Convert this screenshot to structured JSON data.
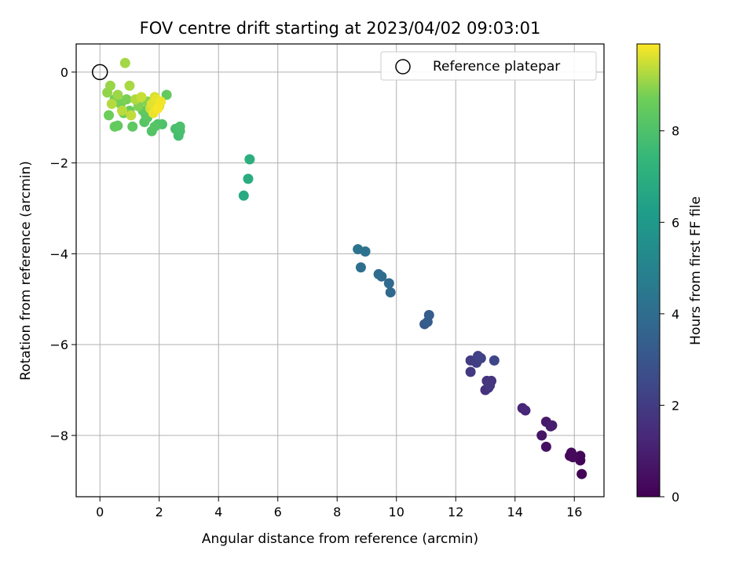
{
  "chart_data": {
    "type": "scatter",
    "title": "FOV centre drift starting at 2023/04/02 09:03:01",
    "xlabel": "Angular distance from reference (arcmin)",
    "ylabel": "Rotation from reference (arcmin)",
    "xlim": [
      -0.8,
      17.0
    ],
    "ylim": [
      -9.35,
      0.62
    ],
    "xticks": [
      0,
      2,
      4,
      6,
      8,
      10,
      12,
      14,
      16
    ],
    "yticks": [
      0,
      -2,
      -4,
      -6,
      -8
    ],
    "grid": true,
    "legend": {
      "label": "Reference platepar",
      "position": "top-right"
    },
    "reference_point": {
      "x": 0,
      "y": 0
    },
    "colorbar": {
      "label": "Hours from first FF file",
      "min": 0,
      "max": 9.9,
      "ticks": [
        0,
        2,
        4,
        6,
        8
      ],
      "colormap": "viridis"
    },
    "points": [
      {
        "x": 16.25,
        "y": -8.85,
        "h": 0.05
      },
      {
        "x": 16.2,
        "y": -8.55,
        "h": 0.1
      },
      {
        "x": 16.15,
        "y": -8.5,
        "h": 0.12
      },
      {
        "x": 16.2,
        "y": -8.45,
        "h": 0.15
      },
      {
        "x": 15.85,
        "y": -8.45,
        "h": 0.2
      },
      {
        "x": 15.9,
        "y": -8.38,
        "h": 0.25
      },
      {
        "x": 15.95,
        "y": -8.48,
        "h": 0.3
      },
      {
        "x": 15.05,
        "y": -8.25,
        "h": 0.5
      },
      {
        "x": 14.9,
        "y": -8.0,
        "h": 0.65
      },
      {
        "x": 15.05,
        "y": -7.7,
        "h": 0.8
      },
      {
        "x": 15.2,
        "y": -7.8,
        "h": 0.9
      },
      {
        "x": 15.25,
        "y": -7.78,
        "h": 0.95
      },
      {
        "x": 14.25,
        "y": -7.4,
        "h": 1.2
      },
      {
        "x": 14.35,
        "y": -7.45,
        "h": 1.3
      },
      {
        "x": 13.0,
        "y": -7.0,
        "h": 1.6
      },
      {
        "x": 13.1,
        "y": -6.95,
        "h": 1.65
      },
      {
        "x": 13.05,
        "y": -6.8,
        "h": 1.7
      },
      {
        "x": 13.2,
        "y": -6.8,
        "h": 1.75
      },
      {
        "x": 13.15,
        "y": -6.9,
        "h": 1.8
      },
      {
        "x": 12.5,
        "y": -6.6,
        "h": 1.9
      },
      {
        "x": 12.5,
        "y": -6.35,
        "h": 2.0
      },
      {
        "x": 12.7,
        "y": -6.4,
        "h": 2.1
      },
      {
        "x": 12.75,
        "y": -6.25,
        "h": 2.15
      },
      {
        "x": 12.85,
        "y": -6.3,
        "h": 2.2
      },
      {
        "x": 12.8,
        "y": -6.28,
        "h": 2.25
      },
      {
        "x": 13.3,
        "y": -6.35,
        "h": 2.35
      },
      {
        "x": 10.95,
        "y": -5.55,
        "h": 3.2
      },
      {
        "x": 11.05,
        "y": -5.5,
        "h": 3.25
      },
      {
        "x": 11.1,
        "y": -5.35,
        "h": 3.3
      },
      {
        "x": 9.8,
        "y": -4.85,
        "h": 3.8
      },
      {
        "x": 9.75,
        "y": -4.65,
        "h": 3.85
      },
      {
        "x": 9.5,
        "y": -4.5,
        "h": 3.9
      },
      {
        "x": 9.4,
        "y": -4.45,
        "h": 3.95
      },
      {
        "x": 8.8,
        "y": -4.3,
        "h": 4.1
      },
      {
        "x": 8.95,
        "y": -3.95,
        "h": 4.2
      },
      {
        "x": 8.7,
        "y": -3.9,
        "h": 4.25
      },
      {
        "x": 4.85,
        "y": -2.72,
        "h": 6.8
      },
      {
        "x": 5.0,
        "y": -2.35,
        "h": 6.9
      },
      {
        "x": 5.05,
        "y": -1.92,
        "h": 7.0
      },
      {
        "x": 2.65,
        "y": -1.4,
        "h": 7.8
      },
      {
        "x": 2.7,
        "y": -1.3,
        "h": 7.85
      },
      {
        "x": 2.55,
        "y": -1.25,
        "h": 7.9
      },
      {
        "x": 2.7,
        "y": -1.2,
        "h": 7.95
      },
      {
        "x": 2.1,
        "y": -1.15,
        "h": 8.0
      },
      {
        "x": 1.95,
        "y": -1.15,
        "h": 8.05
      },
      {
        "x": 1.75,
        "y": -1.3,
        "h": 8.1
      },
      {
        "x": 1.85,
        "y": -1.2,
        "h": 8.15
      },
      {
        "x": 1.5,
        "y": -1.1,
        "h": 8.2
      },
      {
        "x": 1.6,
        "y": -1.0,
        "h": 8.25
      },
      {
        "x": 1.55,
        "y": -0.95,
        "h": 8.3
      },
      {
        "x": 1.45,
        "y": -0.85,
        "h": 8.35
      },
      {
        "x": 1.1,
        "y": -1.2,
        "h": 8.4
      },
      {
        "x": 0.6,
        "y": -1.18,
        "h": 8.45
      },
      {
        "x": 0.5,
        "y": -1.2,
        "h": 8.5
      },
      {
        "x": 2.25,
        "y": -0.5,
        "h": 8.5
      },
      {
        "x": 1.0,
        "y": -0.85,
        "h": 8.55
      },
      {
        "x": 0.8,
        "y": -0.9,
        "h": 8.6
      },
      {
        "x": 0.3,
        "y": -0.95,
        "h": 8.65
      },
      {
        "x": 0.5,
        "y": -0.6,
        "h": 8.7
      },
      {
        "x": 0.7,
        "y": -0.7,
        "h": 8.75
      },
      {
        "x": 0.9,
        "y": -0.6,
        "h": 8.8
      },
      {
        "x": 1.3,
        "y": -0.75,
        "h": 8.85
      },
      {
        "x": 1.6,
        "y": -0.65,
        "h": 8.9
      },
      {
        "x": 0.25,
        "y": -0.45,
        "h": 9.0
      },
      {
        "x": 0.35,
        "y": -0.3,
        "h": 9.05
      },
      {
        "x": 0.6,
        "y": -0.5,
        "h": 9.1
      },
      {
        "x": 0.85,
        "y": 0.2,
        "h": 9.15
      },
      {
        "x": 1.0,
        "y": -0.3,
        "h": 9.2
      },
      {
        "x": 1.2,
        "y": -0.6,
        "h": 9.25
      },
      {
        "x": 0.4,
        "y": -0.7,
        "h": 9.3
      },
      {
        "x": 0.75,
        "y": -0.85,
        "h": 9.35
      },
      {
        "x": 1.05,
        "y": -0.95,
        "h": 9.4
      },
      {
        "x": 1.4,
        "y": -0.55,
        "h": 9.45
      },
      {
        "x": 1.7,
        "y": -0.8,
        "h": 9.5
      },
      {
        "x": 1.85,
        "y": -0.55,
        "h": 9.55
      },
      {
        "x": 2.0,
        "y": -0.75,
        "h": 9.6
      },
      {
        "x": 1.75,
        "y": -0.7,
        "h": 9.65
      },
      {
        "x": 1.9,
        "y": -0.6,
        "h": 9.7
      },
      {
        "x": 1.8,
        "y": -0.9,
        "h": 9.75
      },
      {
        "x": 2.05,
        "y": -0.65,
        "h": 9.8
      },
      {
        "x": 1.95,
        "y": -0.8,
        "h": 9.85
      }
    ]
  }
}
